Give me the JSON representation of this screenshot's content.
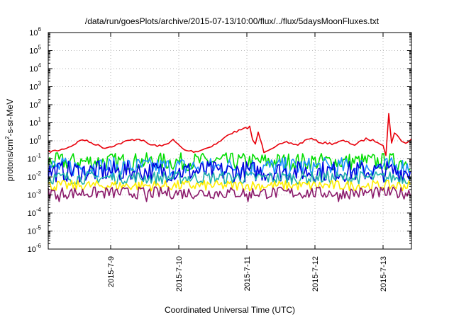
{
  "chart_data": {
    "type": "line",
    "title": "/data/run/goesPlots/archive/2015-07-13/10:00/flux/../flux/5daysMoonFluxes.txt",
    "xlabel": "Coordinated Universal Time (UTC)",
    "ylabel": {
      "pre": "protons/cm",
      "sup": "2",
      "post": "-s-sr-MeV"
    },
    "x_range": [
      "2015-07-08T02:00",
      "2015-07-13T10:00"
    ],
    "x_ticks": [
      "2015-7-9",
      "2015-7-10",
      "2015-7-11",
      "2015-7-12",
      "2015-7-13"
    ],
    "y_scale": "log",
    "y_range": [
      1e-06,
      1000000.0
    ],
    "y_ticks": [
      {
        "base": "10",
        "exp": "-6"
      },
      {
        "base": "10",
        "exp": "-5"
      },
      {
        "base": "10",
        "exp": "-4"
      },
      {
        "base": "10",
        "exp": "-3"
      },
      {
        "base": "10",
        "exp": "-2"
      },
      {
        "base": "10",
        "exp": "-1"
      },
      {
        "base": "10",
        "exp": "0"
      },
      {
        "base": "10",
        "exp": "1"
      },
      {
        "base": "10",
        "exp": "2"
      },
      {
        "base": "10",
        "exp": "3"
      },
      {
        "base": "10",
        "exp": "4"
      },
      {
        "base": "10",
        "exp": "5"
      },
      {
        "base": "10",
        "exp": "6"
      }
    ],
    "grid": true,
    "series": [
      {
        "color": "#e8000b",
        "x": [
          "2015-07-08T02:00",
          "2015-07-08T06:00",
          "2015-07-08T10:00",
          "2015-07-08T14:00",
          "2015-07-08T18:00",
          "2015-07-08T22:00",
          "2015-07-09T02:00",
          "2015-07-09T06:00",
          "2015-07-09T10:00",
          "2015-07-09T14:00",
          "2015-07-09T18:00",
          "2015-07-09T22:00",
          "2015-07-10T02:00",
          "2015-07-10T06:00",
          "2015-07-10T10:00",
          "2015-07-10T14:00",
          "2015-07-10T18:00",
          "2015-07-10T22:00",
          "2015-07-11T01:00",
          "2015-07-11T02:00",
          "2015-07-11T03:00",
          "2015-07-11T04:00",
          "2015-07-11T06:00",
          "2015-07-11T10:00",
          "2015-07-11T14:00",
          "2015-07-11T18:00",
          "2015-07-11T22:00",
          "2015-07-12T02:00",
          "2015-07-12T06:00",
          "2015-07-12T10:00",
          "2015-07-12T14:00",
          "2015-07-12T18:00",
          "2015-07-12T22:00",
          "2015-07-13T00:00",
          "2015-07-13T01:00",
          "2015-07-13T02:00",
          "2015-07-13T03:00",
          "2015-07-13T04:00",
          "2015-07-13T06:00",
          "2015-07-13T08:00",
          "2015-07-13T10:00"
        ],
        "y": [
          0.25,
          0.3,
          0.5,
          1.2,
          0.7,
          0.4,
          0.6,
          1.0,
          1.3,
          0.6,
          0.5,
          1.1,
          0.3,
          0.25,
          0.4,
          0.8,
          2.5,
          4.0,
          6.0,
          1.2,
          0.6,
          3.0,
          0.25,
          0.5,
          0.8,
          0.6,
          1.4,
          0.8,
          0.7,
          1.0,
          0.6,
          1.3,
          0.9,
          0.6,
          0.15,
          30,
          0.8,
          3.0,
          1.2,
          0.7,
          1.3
        ]
      },
      {
        "color": "#00dd00",
        "center": 0.07,
        "spread": 2.2
      },
      {
        "color": "#1e90ff",
        "center": 0.035,
        "spread": 2.4
      },
      {
        "color": "#0000dd",
        "center": 0.02,
        "spread": 2.6
      },
      {
        "color": "#20b2aa",
        "center": 0.009,
        "spread": 1.6
      },
      {
        "color": "#ffee00",
        "center": 0.0033,
        "spread": 1.3
      },
      {
        "color": "#8b1a6b",
        "center": 0.0013,
        "spread": 1.5
      }
    ]
  }
}
